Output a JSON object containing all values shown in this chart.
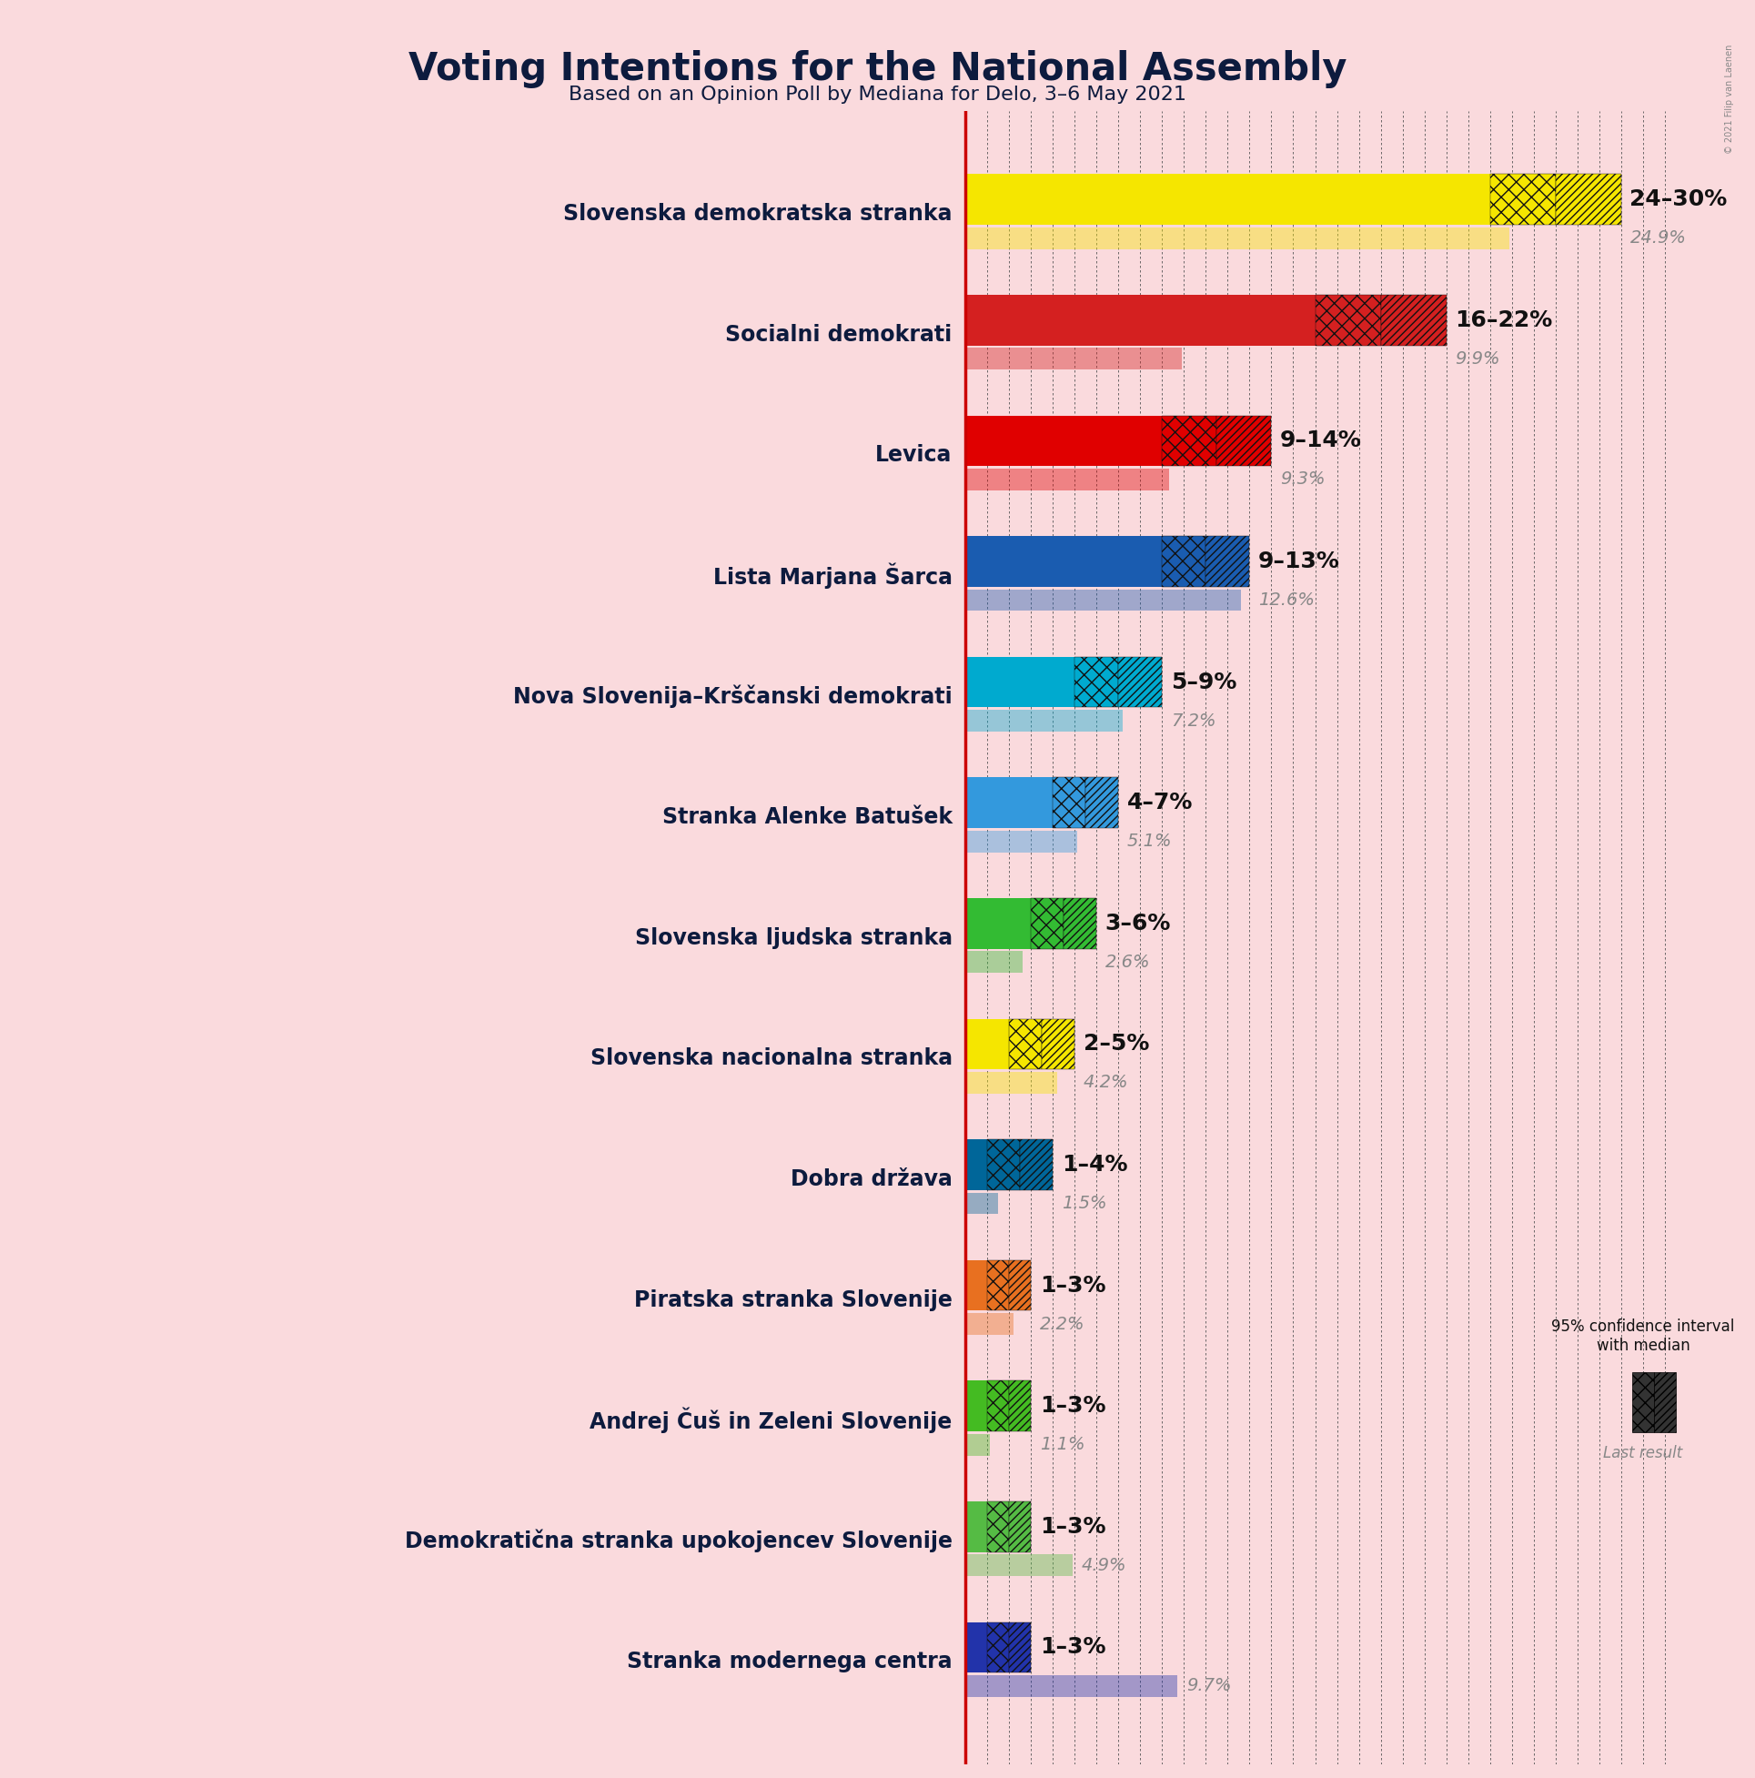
{
  "title": "Voting Intentions for the National Assembly",
  "subtitle": "Based on an Opinion Poll by Mediana for Delo, 3–6 May 2021",
  "background_color": "#fadadd",
  "parties": [
    {
      "name": "Slovenska demokratska stranka",
      "low": 24,
      "high": 30,
      "median": 24.9,
      "color": "#f5e600",
      "last_result": 24.9
    },
    {
      "name": "Socialni demokrati",
      "low": 16,
      "high": 22,
      "median": 9.9,
      "color": "#d42020",
      "last_result": 9.9
    },
    {
      "name": "Levica",
      "low": 9,
      "high": 14,
      "median": 9.3,
      "color": "#e00000",
      "last_result": 9.3
    },
    {
      "name": "Lista Marjana Šarca",
      "low": 9,
      "high": 13,
      "median": 12.6,
      "color": "#1a5cb0",
      "last_result": 12.6
    },
    {
      "name": "Nova Slovenija–Krščanski demokrati",
      "low": 5,
      "high": 9,
      "median": 7.2,
      "color": "#00aacf",
      "last_result": 7.2
    },
    {
      "name": "Stranka Alenke Batušek",
      "low": 4,
      "high": 7,
      "median": 5.1,
      "color": "#3399dd",
      "last_result": 5.1
    },
    {
      "name": "Slovenska ljudska stranka",
      "low": 3,
      "high": 6,
      "median": 2.6,
      "color": "#33bb33",
      "last_result": 2.6
    },
    {
      "name": "Slovenska nacionalna stranka",
      "low": 2,
      "high": 5,
      "median": 4.2,
      "color": "#f5e600",
      "last_result": 4.2
    },
    {
      "name": "Dobra država",
      "low": 1,
      "high": 4,
      "median": 1.5,
      "color": "#006699",
      "last_result": 1.5
    },
    {
      "name": "Piratska stranka Slovenije",
      "low": 1,
      "high": 3,
      "median": 2.2,
      "color": "#e87020",
      "last_result": 2.2
    },
    {
      "name": "Andrej Čuš in Zeleni Slovenije",
      "low": 1,
      "high": 3,
      "median": 1.1,
      "color": "#44bb22",
      "last_result": 1.1
    },
    {
      "name": "Demokratična stranka upokojencev Slovenije",
      "low": 1,
      "high": 3,
      "median": 4.9,
      "color": "#55bb44",
      "last_result": 4.9
    },
    {
      "name": "Stranka modernega centra",
      "low": 1,
      "high": 3,
      "median": 9.7,
      "color": "#2233aa",
      "last_result": 9.7
    }
  ],
  "x_max": 32,
  "bar_height": 0.42,
  "last_bar_height": 0.18,
  "median_line_color": "#cc0000",
  "label_fontsize": 17,
  "range_fontsize": 18,
  "last_fontsize": 14,
  "title_fontsize": 30,
  "subtitle_fontsize": 16,
  "copyright": "© 2021 Filip van Laenen"
}
